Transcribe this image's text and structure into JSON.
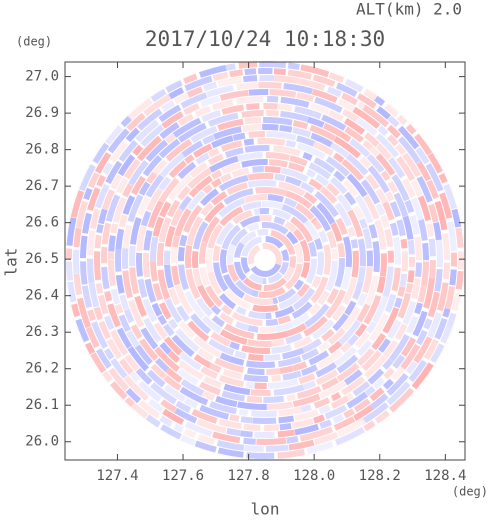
{
  "chart_data": {
    "type": "ppi",
    "title": "2017/10/24 10:18:30",
    "annotation": "ALT(km) 2.0",
    "ylabel": "lat",
    "ylabel_unit": "(deg)",
    "xlabel": "lon",
    "xlabel_unit": "(deg)",
    "xlim": [
      127.24,
      128.46
    ],
    "xticks": [
      127.4,
      127.6,
      127.8,
      {
        "value": 128,
        "label": "128.0"
      },
      128.2,
      128.4
    ],
    "ylim": [
      25.95,
      27.04
    ],
    "yticks": [
      {
        "value": 26,
        "label": "26.0"
      },
      26.1,
      26.2,
      26.3,
      26.4,
      26.5,
      26.6,
      26.7,
      26.8,
      26.9,
      {
        "value": 27,
        "label": "27.0"
      }
    ],
    "colors": [
      "#ff9a9a",
      "#9aa0ff"
    ]
  }
}
